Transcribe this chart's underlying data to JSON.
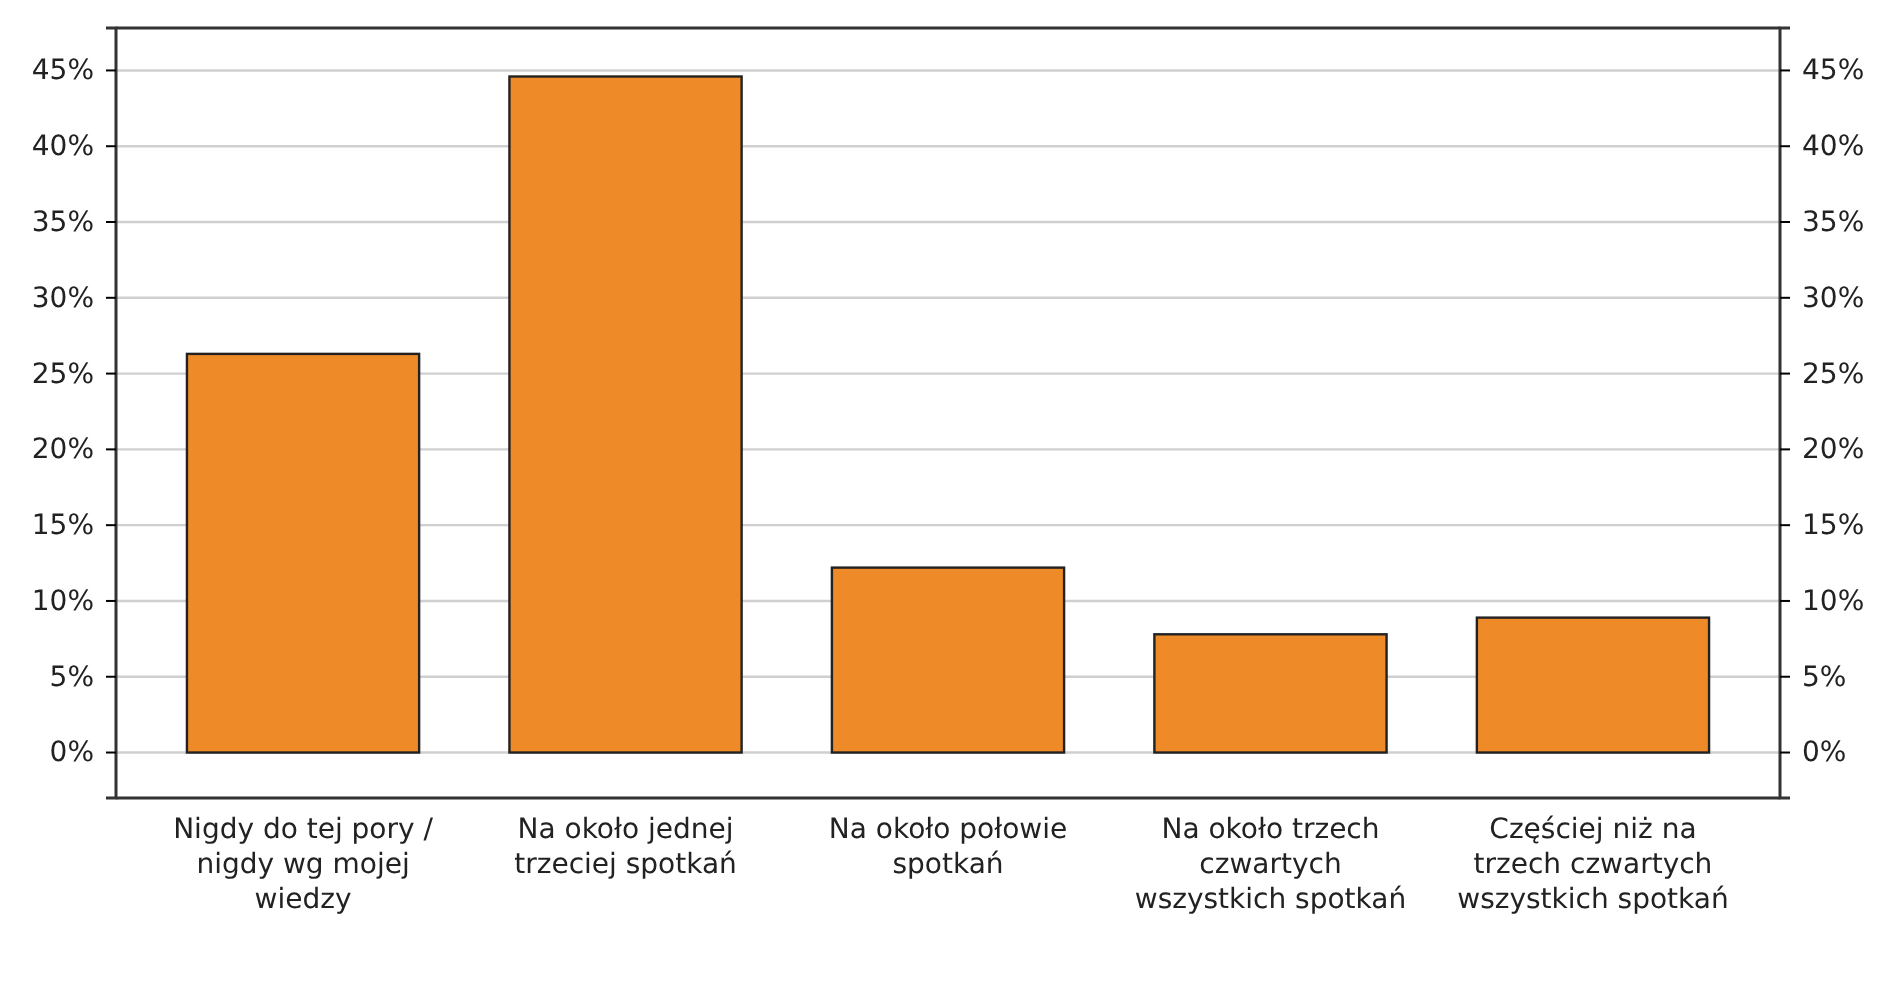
{
  "chart_data": {
    "type": "bar",
    "categories": [
      "Nigdy do tej pory / nigdy wg mojej wiedzy",
      "Na około jednej trzeciej spotkań",
      "Na około połowie spotkań",
      "Na około trzech czwartych wszystkich spotkań",
      "Częściej niż na trzech czwartych wszystkich spotkań"
    ],
    "values": [
      26.3,
      44.6,
      12.2,
      7.8,
      8.9
    ],
    "color": "#ee8a28",
    "ylim": [
      -3,
      47.8
    ],
    "yticks": [
      {
        "value": 0,
        "label": "0%"
      },
      {
        "value": 5,
        "label": "5%"
      },
      {
        "value": 10,
        "label": "10%"
      },
      {
        "value": 15,
        "label": "15%"
      },
      {
        "value": 20,
        "label": "20%"
      },
      {
        "value": 25,
        "label": "25%"
      },
      {
        "value": 30,
        "label": "30%"
      },
      {
        "value": 35,
        "label": "35%"
      },
      {
        "value": 40,
        "label": "40%"
      },
      {
        "value": 45,
        "label": "45%"
      }
    ],
    "y2lim": [
      -3,
      47.8
    ],
    "y2ticks": [
      {
        "value": 0,
        "label": "0%"
      },
      {
        "value": 5,
        "label": "5%"
      },
      {
        "value": 10,
        "label": "10%"
      },
      {
        "value": 15,
        "label": "15%"
      },
      {
        "value": 20,
        "label": "20%"
      },
      {
        "value": 25,
        "label": "25%"
      },
      {
        "value": 30,
        "label": "30%"
      },
      {
        "value": 35,
        "label": "35%"
      },
      {
        "value": 40,
        "label": "40%"
      },
      {
        "value": 45,
        "label": "45%"
      }
    ],
    "grid": "y"
  }
}
